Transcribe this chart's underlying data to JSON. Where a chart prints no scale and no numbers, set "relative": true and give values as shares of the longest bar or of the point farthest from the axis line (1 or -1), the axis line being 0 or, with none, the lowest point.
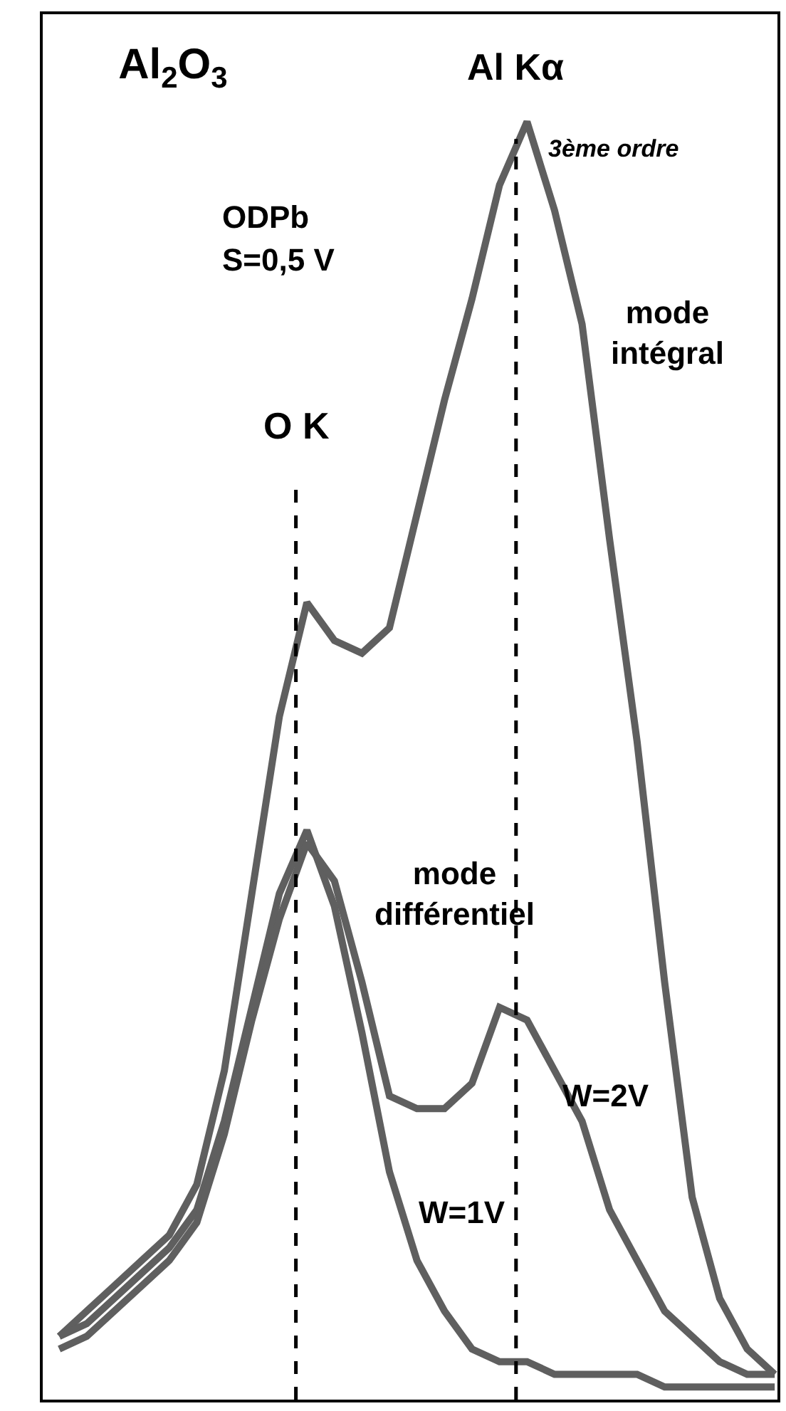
{
  "chart_data": {
    "type": "line",
    "title": "Al$_{2}$O$_{3}$",
    "relative": true,
    "legend": false,
    "marker": "none",
    "line_style": "solid",
    "categories": [
      null,
      null,
      null,
      null,
      null,
      null,
      null,
      null,
      null,
      null,
      null,
      null,
      null,
      null,
      null,
      null,
      null,
      null,
      null,
      null,
      null,
      null,
      null,
      null,
      null,
      null,
      null
    ],
    "series": [
      {
        "name": "mode intégral",
        "color": "#5f5f5f",
        "values": [
          0.04,
          0.06,
          0.08,
          0.1,
          0.12,
          0.16,
          0.25,
          0.39,
          0.53,
          0.62,
          0.59,
          0.58,
          0.6,
          0.69,
          0.78,
          0.86,
          0.95,
          1,
          0.93,
          0.84,
          0.67,
          0.51,
          0.32,
          0.15,
          0.07,
          0.03,
          0.01
        ]
      },
      {
        "name": "W=1V",
        "color": "#5f5f5f",
        "values": [
          0.04,
          0.05,
          0.07,
          0.09,
          0.11,
          0.14,
          0.21,
          0.3,
          0.39,
          0.44,
          0.38,
          0.28,
          0.17,
          0.1,
          0.06,
          0.03,
          0.02,
          0.02,
          0.01,
          0.01,
          0.01,
          0.01,
          0,
          0,
          0,
          0,
          0
        ]
      },
      {
        "name": "W=2V",
        "color": "#5f5f5f",
        "values": [
          0.03,
          0.04,
          0.06,
          0.08,
          0.1,
          0.13,
          0.2,
          0.29,
          0.37,
          0.43,
          0.4,
          0.32,
          0.23,
          0.22,
          0.22,
          0.24,
          0.3,
          0.29,
          0.25,
          0.21,
          0.14,
          0.1,
          0.06,
          0.04,
          0.02,
          0.01,
          0.01
        ]
      }
    ],
    "ref_lines": [
      {
        "axis": "x",
        "label": "O K",
        "color": "#000000",
        "line_style": "dashed"
      },
      {
        "axis": "x",
        "label": "Al Kα",
        "color": "#000000",
        "line_style": "dashed"
      }
    ],
    "annotations": [
      "3ème ordre",
      "ODPb",
      "S=0,5 V",
      "mode différentiel"
    ]
  }
}
